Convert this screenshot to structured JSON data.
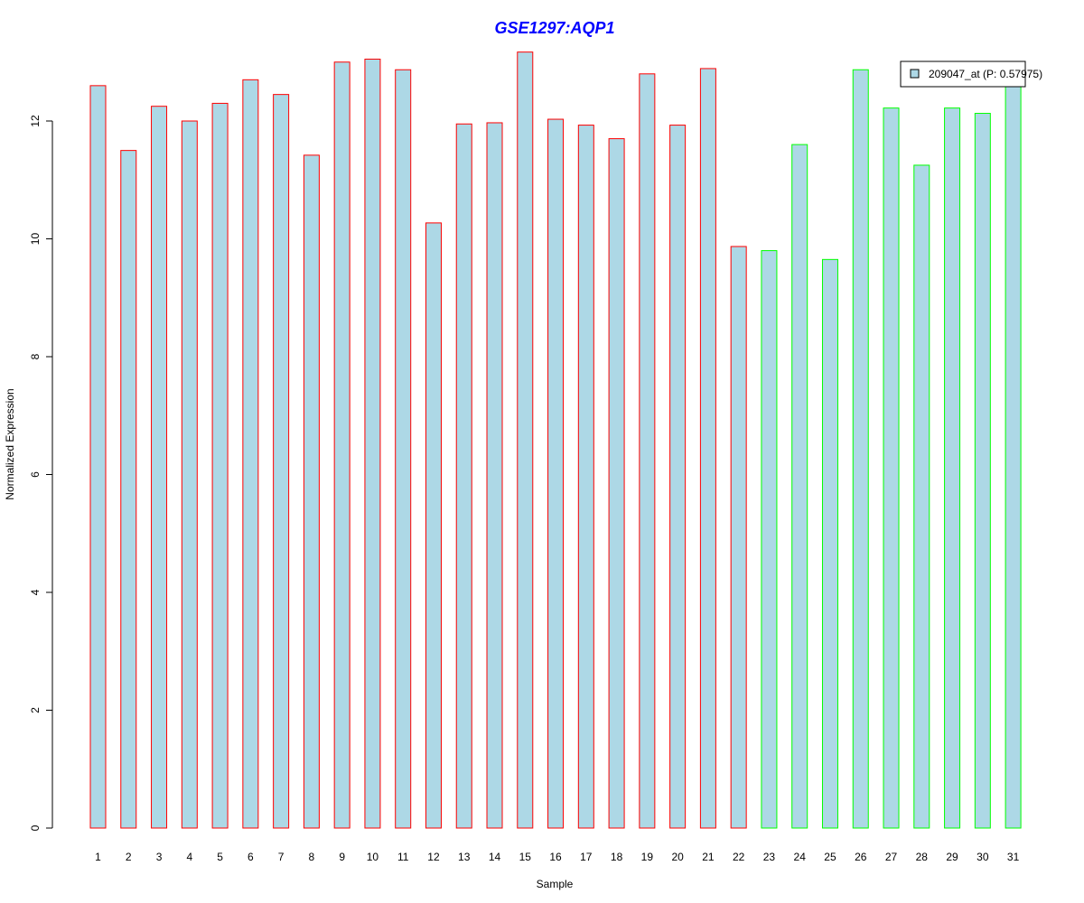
{
  "chart_data": {
    "type": "bar",
    "title": "GSE1297:AQP1",
    "xlabel": "Sample",
    "ylabel": "Normalized Expression",
    "ylim": [
      0,
      13.2
    ],
    "yticks": [
      0,
      2,
      4,
      6,
      8,
      10,
      12
    ],
    "grid": false,
    "legend_position": "top-right",
    "categories": [
      "1",
      "2",
      "3",
      "4",
      "5",
      "6",
      "7",
      "8",
      "9",
      "10",
      "11",
      "12",
      "13",
      "14",
      "15",
      "16",
      "17",
      "18",
      "19",
      "20",
      "21",
      "22",
      "23",
      "24",
      "25",
      "26",
      "27",
      "28",
      "29",
      "30",
      "31"
    ],
    "series": [
      {
        "name": "209047_at (P: 0.57975)",
        "fill_color": "#add8e6",
        "values": [
          12.6,
          11.5,
          12.25,
          12.0,
          12.3,
          12.7,
          12.45,
          11.42,
          13.0,
          13.05,
          12.87,
          10.27,
          11.95,
          11.97,
          13.17,
          12.03,
          11.93,
          11.7,
          12.8,
          11.93,
          12.89,
          9.87,
          9.8,
          11.6,
          9.65,
          12.87,
          12.22,
          11.25,
          12.22,
          12.13,
          12.65
        ]
      }
    ],
    "group_border_colors": [
      "#ff0000",
      "#ff0000",
      "#ff0000",
      "#ff0000",
      "#ff0000",
      "#ff0000",
      "#ff0000",
      "#ff0000",
      "#ff0000",
      "#ff0000",
      "#ff0000",
      "#ff0000",
      "#ff0000",
      "#ff0000",
      "#ff0000",
      "#ff0000",
      "#ff0000",
      "#ff0000",
      "#ff0000",
      "#ff0000",
      "#ff0000",
      "#ff0000",
      "#00ff00",
      "#00ff00",
      "#00ff00",
      "#00ff00",
      "#00ff00",
      "#00ff00",
      "#00ff00",
      "#00ff00",
      "#00ff00"
    ],
    "title_color": "#0000ff"
  }
}
